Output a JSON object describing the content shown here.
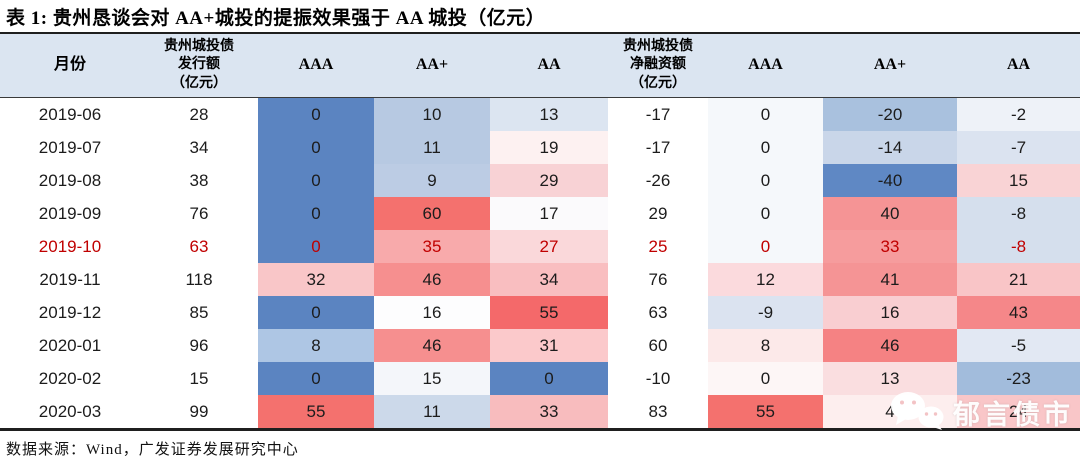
{
  "title": "表 1:  贵州恳谈会对 AA+城投的提振效果强于 AA 城投（亿元）",
  "header": {
    "columns": [
      {
        "label": "月份"
      },
      {
        "label": "贵州城投债\n发行额\n（亿元）"
      },
      {
        "label": "AAA"
      },
      {
        "label": "AA+"
      },
      {
        "label": "AA"
      },
      {
        "label": "贵州城投债\n净融资额\n（亿元）"
      },
      {
        "label": "AAA"
      },
      {
        "label": "AA+"
      },
      {
        "label": "AA"
      }
    ]
  },
  "table": {
    "rows": [
      {
        "month": "2019-06",
        "highlight": false,
        "values": [
          "28",
          "0",
          "10",
          "13",
          "-17",
          "0",
          "-20",
          "-2"
        ],
        "bgs": [
          "#ffffff",
          "#5b84c1",
          "#b7c9e2",
          "#dce5f1",
          "#ffffff",
          "#f5f8fb",
          "#a9c1de",
          "#eef2f8"
        ]
      },
      {
        "month": "2019-07",
        "highlight": false,
        "values": [
          "34",
          "0",
          "11",
          "19",
          "-17",
          "0",
          "-14",
          "-7"
        ],
        "bgs": [
          "#ffffff",
          "#5b84c1",
          "#b7c9e2",
          "#fdf1f1",
          "#ffffff",
          "#f5f8fb",
          "#c9d6e9",
          "#dbe3f0"
        ]
      },
      {
        "month": "2019-08",
        "highlight": false,
        "values": [
          "38",
          "0",
          "9",
          "29",
          "-26",
          "0",
          "-40",
          "15"
        ],
        "bgs": [
          "#ffffff",
          "#5b84c1",
          "#bccce4",
          "#f8d2d5",
          "#ffffff",
          "#f5f8fb",
          "#5f88c4",
          "#f9d3d5"
        ]
      },
      {
        "month": "2019-09",
        "highlight": false,
        "values": [
          "76",
          "0",
          "60",
          "17",
          "29",
          "0",
          "40",
          "-8"
        ],
        "bgs": [
          "#ffffff",
          "#5b84c1",
          "#f4716e",
          "#fbfafc",
          "#ffffff",
          "#f5f8fb",
          "#f59495",
          "#d5dfed"
        ]
      },
      {
        "month": "2019-10",
        "highlight": true,
        "values": [
          "63",
          "0",
          "35",
          "27",
          "25",
          "0",
          "33",
          "-8"
        ],
        "bgs": [
          "#ffffff",
          "#5b84c1",
          "#f8aaab",
          "#fad8da",
          "#ffffff",
          "#f5f8fb",
          "#f69c9d",
          "#d5dfed"
        ]
      },
      {
        "month": "2019-11",
        "highlight": false,
        "values": [
          "118",
          "32",
          "46",
          "34",
          "76",
          "12",
          "41",
          "21"
        ],
        "bgs": [
          "#ffffff",
          "#f9c6c8",
          "#f68f8f",
          "#f9bec0",
          "#ffffff",
          "#fbdadd",
          "#f59495",
          "#f9c5c7"
        ]
      },
      {
        "month": "2019-12",
        "highlight": false,
        "values": [
          "85",
          "0",
          "16",
          "55",
          "63",
          "-9",
          "16",
          "43"
        ],
        "bgs": [
          "#ffffff",
          "#5b84c1",
          "#fdfdfe",
          "#f4696a",
          "#ffffff",
          "#dbe3f0",
          "#f9ced1",
          "#f58789"
        ]
      },
      {
        "month": "2020-01",
        "highlight": false,
        "values": [
          "96",
          "8",
          "46",
          "31",
          "60",
          "8",
          "46",
          "-5"
        ],
        "bgs": [
          "#ffffff",
          "#aec6e4",
          "#f68f8f",
          "#fbc9cb",
          "#ffffff",
          "#fce9e9",
          "#f58283",
          "#e2e8f3"
        ]
      },
      {
        "month": "2020-02",
        "highlight": false,
        "values": [
          "15",
          "0",
          "15",
          "0",
          "-10",
          "0",
          "13",
          "-23"
        ],
        "bgs": [
          "#ffffff",
          "#5b84c1",
          "#f4f6fa",
          "#5b84c1",
          "#ffffff",
          "#fdf6f6",
          "#fadee0",
          "#a2bcdc"
        ]
      },
      {
        "month": "2020-03",
        "highlight": false,
        "values": [
          "99",
          "55",
          "11",
          "33",
          "83",
          "55",
          "4",
          "24"
        ],
        "bgs": [
          "#ffffff",
          "#f4716e",
          "#ccd9ea",
          "#f8bcbe",
          "#ffffff",
          "#f4716e",
          "#fdeeee",
          "#f9c6c8"
        ]
      }
    ]
  },
  "footer": "数据来源：Wind，广发证券发展研究中心",
  "watermark": {
    "label": "郁言债市",
    "icon": "wechat-icon"
  },
  "colors": {
    "header_bg": "#dbe5f1",
    "highlight_text": "#c00000",
    "strong_blue": "#5b84c1",
    "strong_red": "#f4716e",
    "border": "#1f1f1f"
  }
}
